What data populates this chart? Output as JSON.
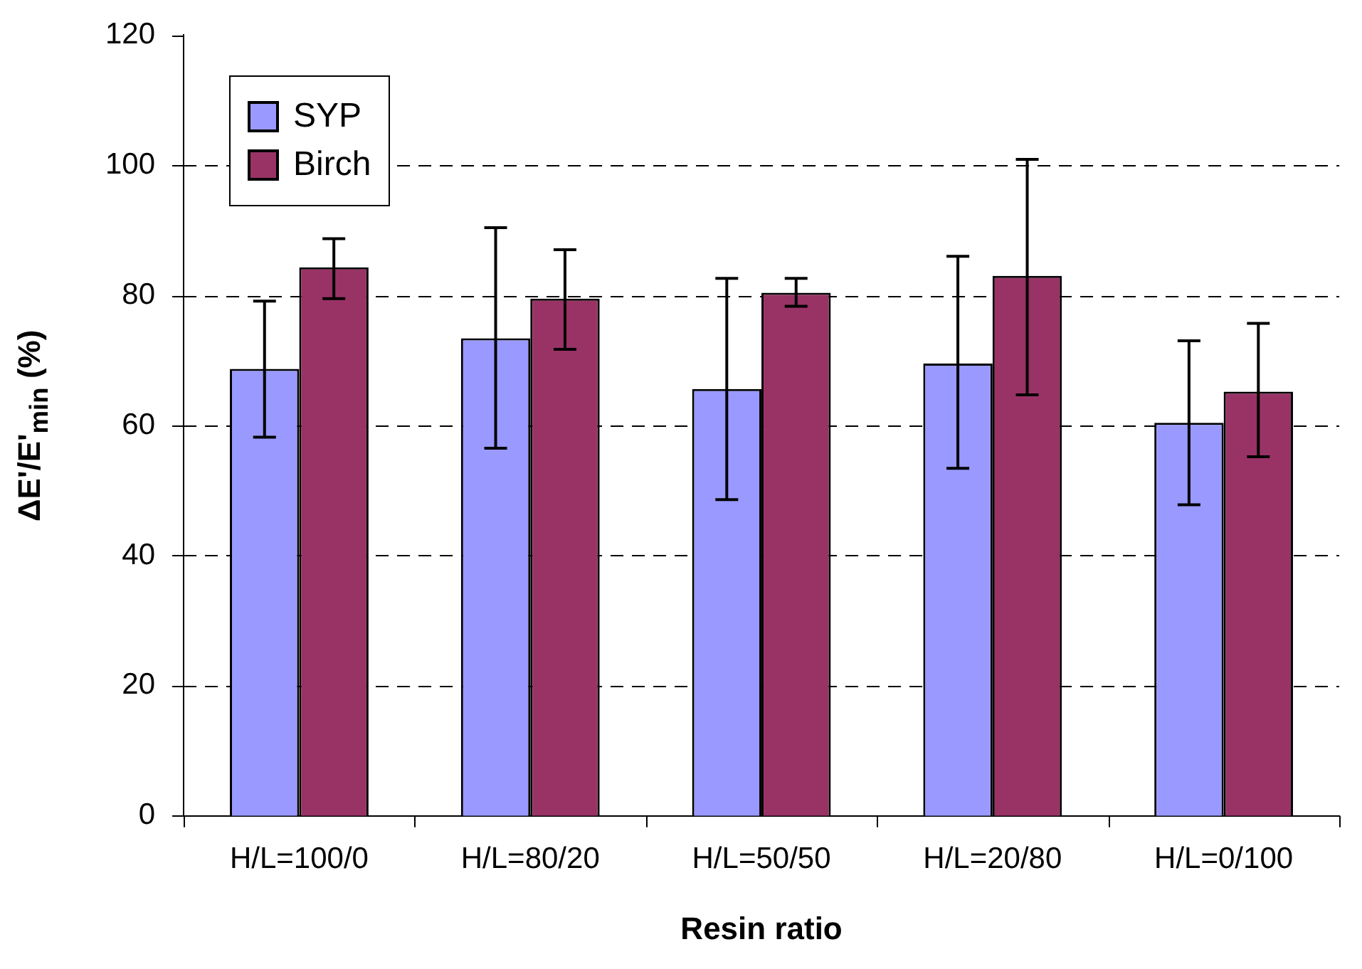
{
  "chart_data": {
    "type": "bar",
    "xlabel": "Resin ratio",
    "ylabel": "ΔE'/E'$_{min}$ (%)",
    "categories": [
      "H/L=100/0",
      "H/L=80/20",
      "H/L=50/50",
      "H/L=20/80",
      "H/L=0/100"
    ],
    "series": [
      {
        "name": "SYP",
        "color": "#9999ff",
        "values": [
          68.7,
          73.4,
          65.6,
          69.5,
          60.4
        ],
        "errors": [
          [
            58.2,
            79.1
          ],
          [
            56.5,
            90.4
          ],
          [
            48.6,
            82.6
          ],
          [
            53.4,
            86.0
          ],
          [
            47.8,
            73.0
          ]
        ]
      },
      {
        "name": "Birch",
        "color": "#993366",
        "values": [
          84.3,
          79.5,
          80.4,
          83.0,
          65.2
        ],
        "errors": [
          [
            79.5,
            88.7
          ],
          [
            71.7,
            87.0
          ],
          [
            78.3,
            82.6
          ],
          [
            64.7,
            100.9
          ],
          [
            55.2,
            75.7
          ]
        ]
      }
    ],
    "ylim": [
      0,
      120
    ],
    "yticks": [
      0,
      20,
      40,
      60,
      80,
      100,
      120
    ],
    "grid": "y",
    "legend": "top left"
  }
}
